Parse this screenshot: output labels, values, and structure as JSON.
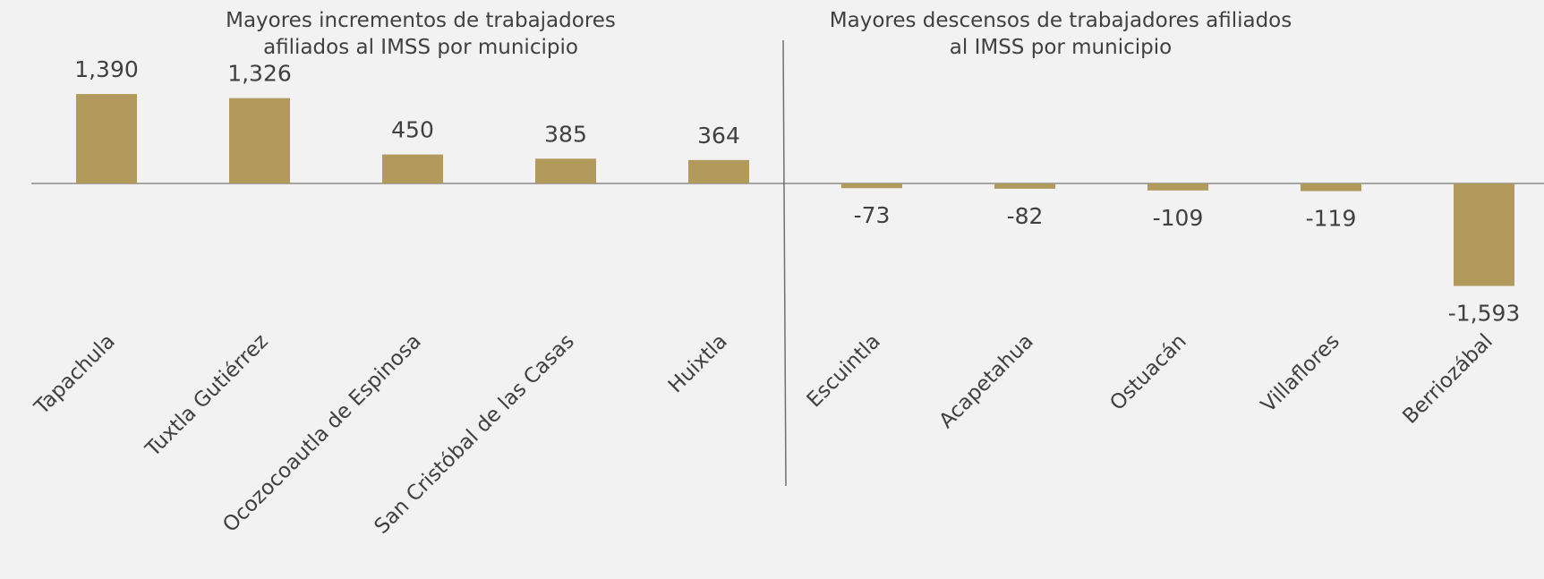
{
  "chart_data": {
    "type": "bar",
    "annotations": [
      "Mayores incrementos de trabajadores afiliados al IMSS por municipio",
      "Mayores descensos de trabajadores afiliados al IMSS por municipio"
    ],
    "categories": [
      "Tapachula",
      "Tuxtla Gutiérrez",
      "Ocozocoautla de Espinosa",
      "San Cristóbal de las Casas",
      "Huixtla",
      "Escuintla",
      "Acapetahua",
      "Ostuacán",
      "Villaflores",
      "Berriozábal"
    ],
    "values": [
      1390,
      1326,
      450,
      385,
      364,
      -73,
      -82,
      -109,
      -119,
      -1593
    ],
    "value_labels": [
      "1,390",
      "1,326",
      "450",
      "385",
      "364",
      "-73",
      "-82",
      "-109",
      "-119",
      "-1,593"
    ],
    "color": "#b19a5b"
  }
}
